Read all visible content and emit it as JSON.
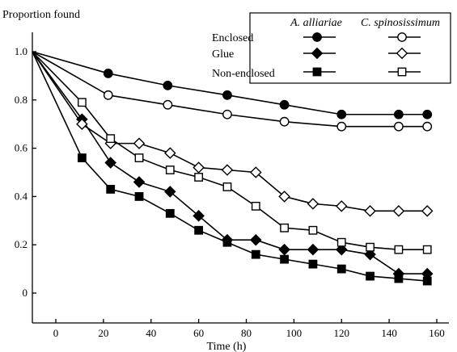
{
  "chart_data": {
    "type": "line",
    "ylabel": "Proportion found",
    "xlabel": "Time (h)",
    "xlim": [
      -10,
      165
    ],
    "ylim": [
      -0.05,
      1.1
    ],
    "x_ticks": [
      0,
      20,
      40,
      60,
      80,
      100,
      120,
      140,
      160
    ],
    "y_ticks": [
      0,
      0.2,
      0.4,
      0.6,
      0.8,
      1.0
    ],
    "x_tick_labels": [
      "0",
      "20",
      "40",
      "60",
      "80",
      "100",
      "120",
      "140",
      "160"
    ],
    "y_tick_labels": [
      "0",
      "0.2",
      "0.4",
      "0.6",
      "0.8",
      "1.0"
    ],
    "grid": false,
    "legend_placement": "top-right",
    "legend": {
      "col_headers": [
        "A. alliariae",
        "C. spinosissimum"
      ],
      "row_labels": [
        "Enclosed",
        "Glue",
        "Non-enclosed"
      ]
    },
    "series": [
      {
        "group": "Enclosed",
        "species": "A. alliariae",
        "marker": "circle",
        "filled": true,
        "x": [
          -10,
          22,
          47,
          72,
          96,
          120,
          144,
          156
        ],
        "y": [
          1.0,
          0.91,
          0.86,
          0.82,
          0.78,
          0.74,
          0.74,
          0.74
        ]
      },
      {
        "group": "Enclosed",
        "species": "C. spinosissimum",
        "marker": "circle",
        "filled": false,
        "x": [
          -10,
          22,
          47,
          72,
          96,
          120,
          144,
          156
        ],
        "y": [
          1.0,
          0.82,
          0.78,
          0.74,
          0.71,
          0.69,
          0.69,
          0.69
        ]
      },
      {
        "group": "Glue",
        "species": "A. alliariae",
        "marker": "diamond",
        "filled": true,
        "x": [
          -10,
          11,
          23,
          35,
          48,
          60,
          72,
          84,
          96,
          108,
          120,
          132,
          144,
          156
        ],
        "y": [
          1.0,
          0.72,
          0.54,
          0.46,
          0.42,
          0.32,
          0.22,
          0.22,
          0.18,
          0.18,
          0.18,
          0.16,
          0.08,
          0.08
        ]
      },
      {
        "group": "Glue",
        "species": "C. spinosissimum",
        "marker": "diamond",
        "filled": false,
        "x": [
          -10,
          11,
          23,
          35,
          48,
          60,
          72,
          84,
          96,
          108,
          120,
          132,
          144,
          156
        ],
        "y": [
          1.0,
          0.7,
          0.62,
          0.62,
          0.58,
          0.52,
          0.51,
          0.5,
          0.4,
          0.37,
          0.36,
          0.34,
          0.34,
          0.34
        ]
      },
      {
        "group": "Non-enclosed",
        "species": "A. alliariae",
        "marker": "square",
        "filled": true,
        "x": [
          -10,
          11,
          23,
          35,
          48,
          60,
          72,
          84,
          96,
          108,
          120,
          132,
          144,
          156
        ],
        "y": [
          1.0,
          0.56,
          0.43,
          0.4,
          0.33,
          0.26,
          0.21,
          0.16,
          0.14,
          0.12,
          0.1,
          0.07,
          0.06,
          0.05
        ]
      },
      {
        "group": "Non-enclosed",
        "species": "C. spinosissimum",
        "marker": "square",
        "filled": false,
        "x": [
          -10,
          11,
          23,
          35,
          48,
          60,
          72,
          84,
          96,
          108,
          120,
          132,
          144,
          156
        ],
        "y": [
          1.0,
          0.79,
          0.64,
          0.56,
          0.51,
          0.48,
          0.44,
          0.36,
          0.27,
          0.26,
          0.21,
          0.19,
          0.18,
          0.18
        ]
      }
    ]
  }
}
